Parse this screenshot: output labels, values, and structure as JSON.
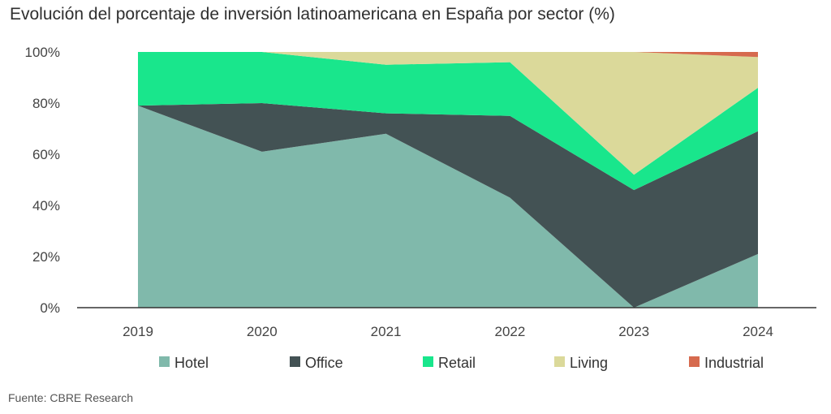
{
  "chart_data": {
    "type": "area",
    "stacked": true,
    "title": "Evolución del porcentaje de inversión latinoamericana en España por sector (%)",
    "xlabel": "",
    "ylabel": "",
    "categories": [
      "2019",
      "2020",
      "2021",
      "2022",
      "2023",
      "2024"
    ],
    "ylim": [
      0,
      100
    ],
    "yticks": [
      "0%",
      "20%",
      "40%",
      "60%",
      "80%",
      "100%"
    ],
    "series": [
      {
        "name": "Hotel",
        "color": "#80b9ab",
        "values": [
          79,
          61,
          68,
          43,
          0,
          21
        ]
      },
      {
        "name": "Office",
        "color": "#435254",
        "values": [
          0,
          19,
          8,
          32,
          46,
          48
        ]
      },
      {
        "name": "Retail",
        "color": "#19e68c",
        "values": [
          21,
          20,
          19,
          21,
          6,
          17
        ]
      },
      {
        "name": "Living",
        "color": "#dbd99a",
        "values": [
          0,
          0,
          5,
          4,
          48,
          12
        ]
      },
      {
        "name": "Industrial",
        "color": "#d66a4e",
        "values": [
          0,
          0,
          0,
          0,
          0,
          2
        ]
      }
    ],
    "legend_position": "bottom",
    "grid": false
  },
  "source": "Fuente: CBRE Research"
}
